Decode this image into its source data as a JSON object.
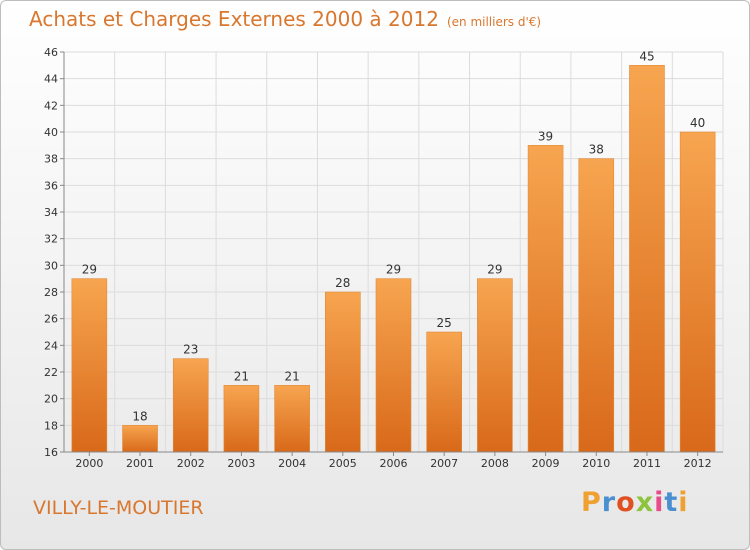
{
  "title": "Achats et Charges Externes 2000 à 2012",
  "subtitle": "(en milliers d'€)",
  "commune": "VILLY-LE-MOUTIER",
  "brand": {
    "letters": [
      "P",
      "r",
      "o",
      "x",
      "i",
      "t",
      "i"
    ],
    "colors": [
      "#f0a030",
      "#4a90d0",
      "#e05020",
      "#8cc43c",
      "#e84a8a",
      "#4a90d0",
      "#f0a030"
    ]
  },
  "colors": {
    "accent": "#d9772e",
    "bar_top": "#f7a550",
    "bar_bottom": "#d8691a",
    "grid": "#dcdcdc"
  },
  "chart_data": {
    "type": "bar",
    "categories": [
      "2000",
      "2001",
      "2002",
      "2003",
      "2004",
      "2005",
      "2006",
      "2007",
      "2008",
      "2009",
      "2010",
      "2011",
      "2012"
    ],
    "values": [
      29,
      18,
      23,
      21,
      21,
      28,
      29,
      25,
      29,
      39,
      38,
      45,
      40
    ],
    "ylim": [
      16,
      46
    ],
    "yticks": [
      16,
      18,
      20,
      22,
      24,
      26,
      28,
      30,
      32,
      34,
      36,
      38,
      40,
      42,
      44,
      46
    ],
    "grid": true,
    "data_labels": true
  }
}
